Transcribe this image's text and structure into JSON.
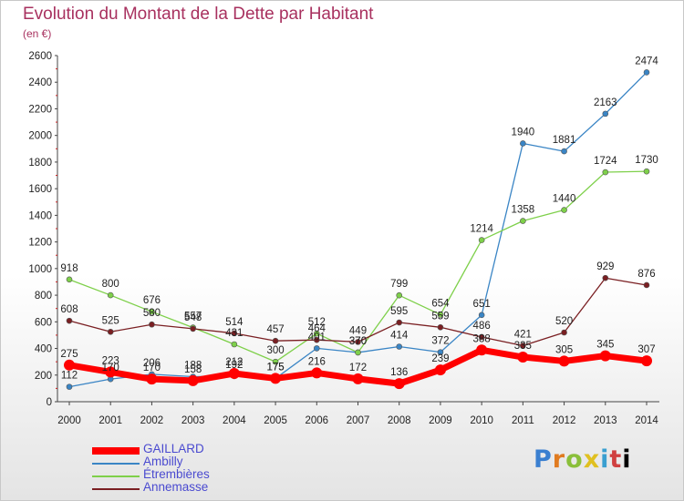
{
  "chart_data": {
    "type": "line",
    "title": "Evolution du Montant de la Dette par Habitant",
    "subtitle": "(en €)",
    "x": [
      "2000",
      "2001",
      "2002",
      "2003",
      "2004",
      "2005",
      "2006",
      "2007",
      "2008",
      "2009",
      "2010",
      "2011",
      "2012",
      "2013",
      "2014"
    ],
    "ylim": [
      0,
      2600
    ],
    "yticks": [
      0,
      200,
      400,
      600,
      800,
      1000,
      1200,
      1400,
      1600,
      1800,
      2000,
      2200,
      2400,
      2600
    ],
    "grid": false,
    "legend_position": "bottom-left",
    "series": [
      {
        "name": "GAILLARD",
        "color": "#ff0000",
        "values": [
          275,
          223,
          170,
          158,
          212,
          175,
          216,
          172,
          136,
          239,
          388,
          335,
          305,
          345,
          307
        ]
      },
      {
        "name": "Ambilly",
        "color": "#3a85c5",
        "values": [
          112,
          170,
          206,
          188,
          192,
          175,
          401,
          370,
          414,
          372,
          651,
          1940,
          1881,
          2163,
          2474
        ]
      },
      {
        "name": "Étrembières",
        "color": "#7ed04a",
        "values": [
          918,
          800,
          676,
          557,
          431,
          300,
          512,
          370,
          799,
          654,
          1214,
          1358,
          1440,
          1724,
          1730
        ]
      },
      {
        "name": "Annemasse",
        "color": "#7a1f22",
        "values": [
          608,
          525,
          580,
          548,
          514,
          457,
          464,
          449,
          595,
          559,
          486,
          421,
          520,
          929,
          876
        ]
      }
    ],
    "data_labels": [
      {
        "series": 0,
        "labels": [
          "275",
          "223",
          "170",
          "158",
          "212",
          "175",
          "216",
          "172",
          "136",
          "239",
          "388",
          "335",
          "305",
          "345",
          "307"
        ]
      },
      {
        "series": 1,
        "labels": [
          "112",
          "170",
          "206",
          "188",
          "192",
          "175",
          "401",
          "370",
          "414",
          "372",
          "651",
          "1940",
          "1881",
          "2163",
          "2474"
        ]
      },
      {
        "series": 2,
        "labels": [
          "918",
          "800",
          "676",
          "557",
          "431",
          "300",
          "512",
          "370",
          "799",
          "654",
          "1214",
          "1358",
          "1440",
          "1724",
          "1730"
        ]
      },
      {
        "series": 3,
        "labels": [
          "608",
          "525",
          "580",
          "548",
          "514",
          "457",
          "464",
          "449",
          "595",
          "559",
          "486",
          "421",
          "520",
          "929",
          "876"
        ]
      }
    ]
  },
  "logo": {
    "text": [
      "P",
      "r",
      "o",
      "x",
      "i",
      "t",
      "i"
    ]
  }
}
